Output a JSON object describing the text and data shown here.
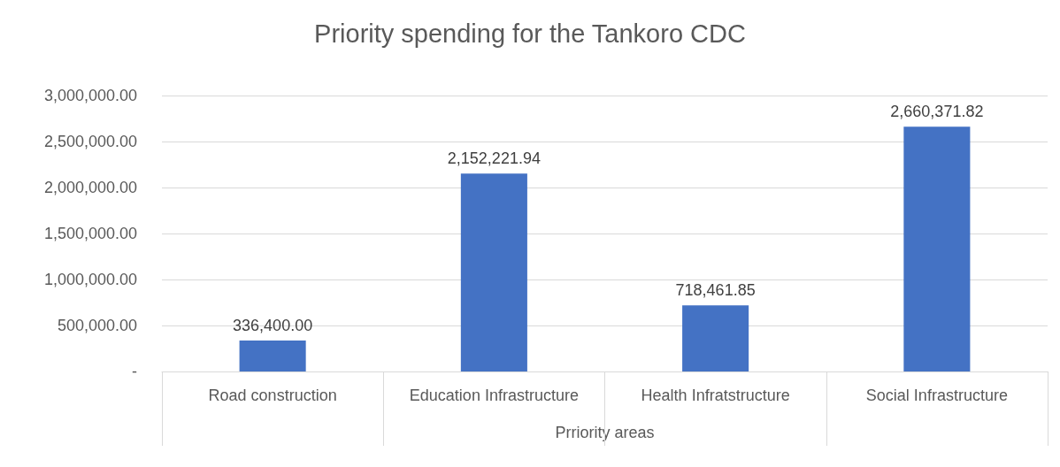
{
  "chart_data": {
    "type": "bar",
    "title": "Priority spending for the Tankoro CDC",
    "xlabel": "Prriority areas",
    "categories": [
      "Road construction",
      "Education Infrastructure",
      "Health Infratstructure",
      "Social Infrastructure"
    ],
    "values": [
      336400,
      2152221.94,
      718461.85,
      2660371.82
    ],
    "value_labels": [
      "336,400.00",
      "2,152,221.94",
      "718,461.85",
      "2,660,371.82"
    ],
    "color": "#4472c4",
    "ylim": [
      0,
      3000000
    ],
    "yticks": [
      {
        "value": 0,
        "label": "-"
      },
      {
        "value": 500000,
        "label": "500,000.00"
      },
      {
        "value": 1000000,
        "label": "1,000,000.00"
      },
      {
        "value": 1500000,
        "label": "1,500,000.00"
      },
      {
        "value": 2000000,
        "label": "2,000,000.00"
      },
      {
        "value": 2500000,
        "label": "2,500,000.00"
      },
      {
        "value": 3000000,
        "label": "3,000,000.00"
      }
    ],
    "grid": "y"
  }
}
